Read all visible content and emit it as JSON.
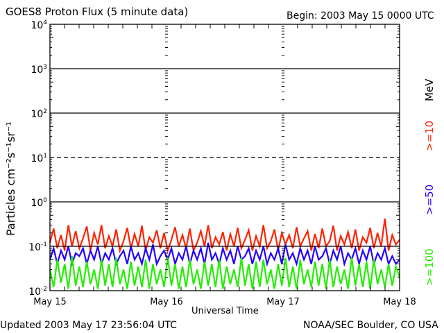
{
  "chart_data": {
    "type": "line",
    "title": "GOES8 Proton Flux (5 minute data)",
    "begin_label": "Begin: 2003 May 15 0000 UTC",
    "xlabel": "Universal Time",
    "ylabel": "Particles cm⁻²s⁻¹sr⁻¹",
    "yscale": "log",
    "ylim": [
      0.01,
      10000
    ],
    "y_tick_labels": [
      {
        "base": "10",
        "exp": "4"
      },
      {
        "base": "10",
        "exp": "3"
      },
      {
        "base": "10",
        "exp": "2"
      },
      {
        "base": "10",
        "exp": "1"
      },
      {
        "base": "10",
        "exp": "0"
      },
      {
        "base": "10",
        "exp": "-1"
      },
      {
        "base": "10",
        "exp": "-2"
      }
    ],
    "x_range_days": [
      0,
      3
    ],
    "x_tick_labels": [
      "May 15",
      "May 16",
      "May 17",
      "May 18"
    ],
    "reference_lines": [
      {
        "value": 1000,
        "style": "solid"
      },
      {
        "value": 100,
        "style": "solid"
      },
      {
        "value": 10,
        "style": "dashed"
      },
      {
        "value": 1,
        "style": "solid"
      },
      {
        "value": 0.1,
        "style": "solid"
      }
    ],
    "unit_label": "MeV",
    "series": [
      {
        "name": ">=10",
        "color": "#ff2200",
        "values": [
          0.12,
          0.25,
          0.09,
          0.18,
          0.08,
          0.3,
          0.1,
          0.22,
          0.09,
          0.15,
          0.28,
          0.08,
          0.2,
          0.11,
          0.3,
          0.09,
          0.17,
          0.1,
          0.24,
          0.08,
          0.13,
          0.26,
          0.09,
          0.19,
          0.1,
          0.29,
          0.08,
          0.16,
          0.12,
          0.23,
          0.09,
          0.2,
          0.08,
          0.14,
          0.27,
          0.1,
          0.18,
          0.09,
          0.25,
          0.08,
          0.12,
          0.22,
          0.1,
          0.3,
          0.09,
          0.16,
          0.11,
          0.21,
          0.08,
          0.19,
          0.1,
          0.26,
          0.09,
          0.14,
          0.23,
          0.08,
          0.17,
          0.1,
          0.3,
          0.09,
          0.13,
          0.24,
          0.08,
          0.2,
          0.11,
          0.18,
          0.09,
          0.27,
          0.1,
          0.15,
          0.22,
          0.08,
          0.19,
          0.09,
          0.25,
          0.1,
          0.13,
          0.29,
          0.08,
          0.17,
          0.11,
          0.21,
          0.09,
          0.24,
          0.08,
          0.16,
          0.12,
          0.26,
          0.09,
          0.2,
          0.1,
          0.42,
          0.08,
          0.18,
          0.11,
          0.14
        ]
      },
      {
        "name": ">=50",
        "color": "#2200ff",
        "values": [
          0.05,
          0.09,
          0.04,
          0.08,
          0.05,
          0.1,
          0.04,
          0.07,
          0.06,
          0.09,
          0.04,
          0.08,
          0.05,
          0.1,
          0.04,
          0.07,
          0.05,
          0.09,
          0.04,
          0.06,
          0.08,
          0.04,
          0.1,
          0.05,
          0.07,
          0.04,
          0.09,
          0.05,
          0.11,
          0.04,
          0.06,
          0.08,
          0.05,
          0.09,
          0.04,
          0.07,
          0.05,
          0.1,
          0.04,
          0.08,
          0.05,
          0.09,
          0.04,
          0.12,
          0.05,
          0.07,
          0.04,
          0.09,
          0.05,
          0.08,
          0.04,
          0.1,
          0.05,
          0.06,
          0.09,
          0.04,
          0.08,
          0.05,
          0.1,
          0.04,
          0.07,
          0.05,
          0.09,
          0.04,
          0.11,
          0.05,
          0.07,
          0.04,
          0.09,
          0.05,
          0.08,
          0.04,
          0.1,
          0.05,
          0.06,
          0.09,
          0.04,
          0.08,
          0.05,
          0.1,
          0.04,
          0.07,
          0.05,
          0.09,
          0.04,
          0.08,
          0.05,
          0.1,
          0.04,
          0.07,
          0.05,
          0.09,
          0.04,
          0.06,
          0.04,
          0.05
        ]
      },
      {
        "name": ">=100",
        "color": "#22ee00",
        "values": [
          0.03,
          0.012,
          0.05,
          0.015,
          0.04,
          0.011,
          0.06,
          0.013,
          0.035,
          0.012,
          0.045,
          0.014,
          0.03,
          0.011,
          0.05,
          0.013,
          0.04,
          0.012,
          0.055,
          0.014,
          0.03,
          0.011,
          0.045,
          0.013,
          0.035,
          0.012,
          0.05,
          0.011,
          0.04,
          0.014,
          0.03,
          0.012,
          0.055,
          0.013,
          0.04,
          0.011,
          0.035,
          0.012,
          0.05,
          0.014,
          0.03,
          0.011,
          0.045,
          0.013,
          0.04,
          0.012,
          0.05,
          0.011,
          0.035,
          0.014,
          0.03,
          0.012,
          0.055,
          0.013,
          0.04,
          0.011,
          0.045,
          0.012,
          0.05,
          0.014,
          0.03,
          0.011,
          0.04,
          0.013,
          0.055,
          0.012,
          0.035,
          0.011,
          0.05,
          0.014,
          0.03,
          0.012,
          0.045,
          0.013,
          0.04,
          0.011,
          0.05,
          0.012,
          0.035,
          0.014,
          0.03,
          0.011,
          0.055,
          0.013,
          0.04,
          0.012,
          0.045,
          0.011,
          0.05,
          0.014,
          0.03,
          0.012,
          0.04,
          0.013,
          0.035,
          0.02
        ]
      }
    ]
  },
  "footer": {
    "updated": "Updated 2003 May 17 23:56:04 UTC",
    "credit": "NOAA/SEC Boulder, CO USA"
  }
}
